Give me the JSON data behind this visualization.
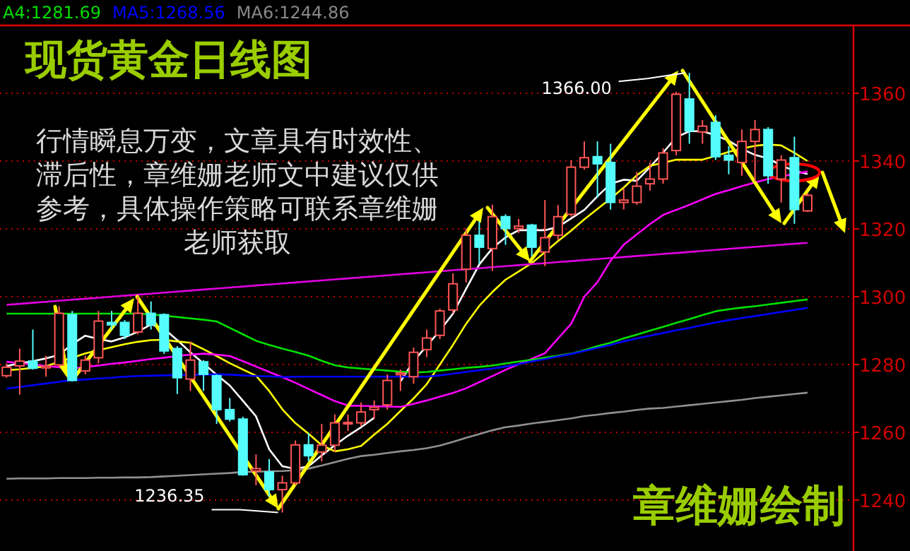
{
  "chart_data": {
    "type": "candlestick",
    "title": "现货黄金日线图",
    "categories": [
      null,
      null,
      null,
      null,
      null,
      null,
      null,
      null,
      null,
      null,
      null,
      null,
      null,
      null,
      null,
      null,
      null,
      null,
      null,
      null,
      null,
      null,
      null,
      null,
      null,
      null,
      null,
      null,
      null,
      null,
      null,
      null,
      null,
      null,
      null,
      null,
      null,
      null,
      null,
      null,
      null,
      null,
      null,
      null,
      null,
      null,
      null,
      null,
      null,
      null,
      null,
      null,
      null,
      null,
      null,
      null,
      null,
      null,
      null,
      null,
      null,
      null
    ],
    "ohlc": [
      [
        1276.7,
        1280.3,
        1276.1,
        1279.2
      ],
      [
        1279.6,
        1284.7,
        1271.1,
        1281.0
      ],
      [
        1281.0,
        1290.3,
        1278.5,
        1278.9
      ],
      [
        1279.0,
        1282.6,
        1276.4,
        1279.5
      ],
      [
        1279.9,
        1297.2,
        1279.2,
        1295.1
      ],
      [
        1294.7,
        1295.8,
        1275.0,
        1275.3
      ],
      [
        1278.1,
        1282.6,
        1277.1,
        1281.3
      ],
      [
        1282.0,
        1295.8,
        1280.3,
        1292.8
      ],
      [
        1292.4,
        1295.8,
        1290.3,
        1291.7
      ],
      [
        1292.4,
        1293.1,
        1287.5,
        1288.6
      ],
      [
        1289.6,
        1300.0,
        1288.9,
        1295.1
      ],
      [
        1295.1,
        1298.6,
        1290.3,
        1291.7
      ],
      [
        1294.7,
        1295.1,
        1283.1,
        1284.0
      ],
      [
        1284.7,
        1285.4,
        1271.3,
        1276.1
      ],
      [
        1275.7,
        1286.8,
        1272.2,
        1281.3
      ],
      [
        1280.8,
        1281.3,
        1272.2,
        1277.1
      ],
      [
        1276.7,
        1277.1,
        1262.5,
        1266.7
      ],
      [
        1266.7,
        1270.1,
        1263.2,
        1263.9
      ],
      [
        1263.9,
        1264.6,
        1247.2,
        1247.5
      ],
      [
        1248.6,
        1253.5,
        1244.4,
        1249.3
      ],
      [
        1248.3,
        1252.1,
        1241.0,
        1243.1
      ],
      [
        1243.1,
        1247.2,
        1236.35,
        1245.1
      ],
      [
        1245.1,
        1257.6,
        1244.4,
        1256.3
      ],
      [
        1256.3,
        1259.7,
        1251.4,
        1253.1
      ],
      [
        1254.2,
        1262.5,
        1251.4,
        1256.2
      ],
      [
        1256.2,
        1265.3,
        1254.2,
        1262.8
      ],
      [
        1262.5,
        1265.3,
        1260.4,
        1262.9
      ],
      [
        1262.8,
        1268.8,
        1261.8,
        1266.0
      ],
      [
        1266.7,
        1269.4,
        1263.9,
        1267.4
      ],
      [
        1268.1,
        1277.1,
        1266.7,
        1275.3
      ],
      [
        1277.0,
        1278.5,
        1272.2,
        1277.5
      ],
      [
        1276.4,
        1285.0,
        1274.3,
        1283.6
      ],
      [
        1284.4,
        1290.3,
        1282.2,
        1287.8
      ],
      [
        1288.6,
        1296.5,
        1287.5,
        1295.8
      ],
      [
        1296.1,
        1306.9,
        1295.1,
        1303.8
      ],
      [
        1308.1,
        1320.1,
        1304.2,
        1318.1
      ],
      [
        1318.1,
        1322.2,
        1309.7,
        1314.6
      ],
      [
        1314.2,
        1327.1,
        1307.6,
        1323.6
      ],
      [
        1323.6,
        1324.3,
        1315.3,
        1320.1
      ],
      [
        1320.1,
        1322.9,
        1318.8,
        1320.8
      ],
      [
        1321.1,
        1321.5,
        1311.8,
        1314.6
      ],
      [
        1313.2,
        1328.5,
        1309.0,
        1317.4
      ],
      [
        1318.1,
        1327.0,
        1316.7,
        1323.6
      ],
      [
        1324.3,
        1340.3,
        1323.6,
        1338.2
      ],
      [
        1338.2,
        1345.8,
        1337.5,
        1341.0
      ],
      [
        1341.3,
        1345.8,
        1329.2,
        1339.2
      ],
      [
        1339.6,
        1345.1,
        1325.7,
        1327.8
      ],
      [
        1327.8,
        1331.9,
        1325.7,
        1328.5
      ],
      [
        1327.8,
        1336.8,
        1327.1,
        1332.6
      ],
      [
        1333.3,
        1339.6,
        1331.3,
        1334.7
      ],
      [
        1334.7,
        1343.8,
        1333.3,
        1342.4
      ],
      [
        1343.1,
        1360.4,
        1341.7,
        1359.7
      ],
      [
        1358.3,
        1366.0,
        1345.1,
        1348.9
      ],
      [
        1348.6,
        1352.1,
        1345.1,
        1350.3
      ],
      [
        1351.4,
        1353.5,
        1340.3,
        1341.3
      ],
      [
        1341.7,
        1344.4,
        1336.1,
        1340.3
      ],
      [
        1339.6,
        1349.3,
        1335.7,
        1345.8
      ],
      [
        1345.8,
        1352.1,
        1334.0,
        1349.3
      ],
      [
        1349.3,
        1350.0,
        1333.3,
        1335.7
      ],
      [
        1334.7,
        1341.7,
        1327.8,
        1340.3
      ],
      [
        1341.0,
        1347.2,
        1321.5,
        1325.7
      ],
      [
        1325.3,
        1330.6,
        1325.0,
        1329.9
      ]
    ],
    "series": [
      {
        "type": "line",
        "color": "#ffffff",
        "values": [
          1279.6,
          1280.3,
          1281,
          1281.8,
          1282.8,
          1286,
          1288.5,
          1287.5,
          1286.8,
          1288,
          1289.7,
          1291.8,
          1290.5,
          1287.2,
          1283.6,
          1280.3,
          1277,
          1273.8,
          1269.3,
          1264.7,
          1255,
          1250,
          1249.2,
          1250,
          1253.2,
          1256.2,
          1259,
          1261.5,
          1264.3,
          null,
          1275,
          1281,
          1285.5,
          1290,
          1295,
          1302.3,
          1309.5,
          1314.3,
          1317.5,
          1319.6,
          1319.6,
          1319.6,
          1320.6,
          1323.1,
          1325.6,
          1329.6,
          1333.3,
          1334.5,
          1334.2,
          1338.2,
          1342.5,
          1347,
          1348.8,
          1348.8,
          1347.6,
          1346,
          1343.6,
          1341.8,
          1340.8,
          1338.7,
          1337.1,
          1336.2
        ]
      },
      {
        "type": "line",
        "color": "#ffff00",
        "values": [
          1278.3,
          1278.6,
          1279,
          1279.5,
          1280.8,
          1282,
          1283.3,
          1284.2,
          1285.1,
          1286,
          1286.7,
          1287.2,
          1287.3,
          1286.8,
          1286.4,
          1284.5,
          1282.5,
          1280.4,
          1278.5,
          1276.7,
          1272.2,
          1266.8,
          1262.7,
          1259.6,
          1256.2,
          1254.4,
          1255,
          1256,
          1259.3,
          1262.5,
          1266.3,
          1270,
          1274.2,
          1280,
          1285.8,
          1292,
          1297.3,
          1301.4,
          1305,
          1307.4,
          1309.9,
          1313.1,
          1316.4,
          1319.5,
          1322.8,
          1325.9,
          1328.9,
          1332.2,
          1335.8,
          1338.6,
          1339.5,
          1340.4,
          1340.4,
          1340.4,
          1341.5,
          1342.7,
          1343.7,
          1344.5,
          1344.9,
          1344.6,
          1342.4,
          1340
        ]
      },
      {
        "type": "line",
        "color": "#ff00ff",
        "values": [
          1280.8,
          1280.4,
          1280,
          1279.6,
          1279.2,
          1278.8,
          1279.3,
          1279.7,
          1280.2,
          1280.6,
          1281.1,
          1281.6,
          1282,
          1282.5,
          1282.9,
          1283.2,
          1282.9,
          1282.5,
          1281,
          1279.4,
          1277.8,
          1276.3,
          1274.6,
          1272.8,
          1271,
          1269.2,
          1267.9,
          1267.8,
          1267.7,
          1267.6,
          1267.5,
          1268.4,
          1269.4,
          1270.5,
          1271.6,
          1273,
          1274.8,
          1276.6,
          1278.4,
          1280.1,
          1281.7,
          1283.3,
          1287.7,
          1292,
          1300,
          1304.3,
          1310.6,
          1315.3,
          1318.4,
          1321.4,
          1324.1,
          1325.6,
          1327.1,
          1328.7,
          1330.3,
          1331.4,
          1332.6,
          1333.7,
          1334.7,
          1335.5,
          1336.2,
          1336.9
        ]
      },
      {
        "type": "line",
        "color": "#00e000",
        "values": [
          1295,
          1295,
          1295,
          1295,
          1295,
          1295,
          1295,
          1295,
          1295,
          1295,
          1295,
          1294.8,
          1294.4,
          1294,
          1293.6,
          1293.2,
          1292.7,
          1290.8,
          1288.9,
          1287,
          1285.8,
          1284.7,
          1283.7,
          1282.6,
          1281.1,
          1279.8,
          1279.1,
          1278.8,
          1278.5,
          1278.2,
          1277.9,
          1277.6,
          1277.8,
          1278.2,
          1278.6,
          1279,
          1279.3,
          1279.7,
          1280.3,
          1280.9,
          1281.4,
          1282,
          1282.6,
          1283.2,
          1284.2,
          1285.4,
          1286.4,
          1287.7,
          1288.8,
          1290,
          1291.1,
          1292.3,
          1293.4,
          1294.6,
          1295.7,
          1296.3,
          1296.8,
          1297.2,
          1297.7,
          1298.2,
          1298.7,
          1299.2
        ]
      },
      {
        "type": "line",
        "color": "#0000ff",
        "values": [
          1272.9,
          1273.4,
          1273.9,
          1274.4,
          1274.9,
          1275.4,
          1275.6,
          1275.9,
          1276.1,
          1276.4,
          1276.6,
          1276.7,
          1276.8,
          1276.9,
          1277,
          1277,
          1277.1,
          1277,
          1276.8,
          1276.6,
          1276.5,
          1276.3,
          1276.4,
          1276.4,
          1276.4,
          1276.4,
          1276.4,
          1276.4,
          1276.4,
          1276.4,
          1276.4,
          1276.4,
          1276.4,
          1276.8,
          1277.3,
          1277.8,
          1278.3,
          1278.8,
          1279.4,
          1280.1,
          1280.9,
          1281.6,
          1282.4,
          1283.1,
          1284,
          1284.9,
          1285.8,
          1286.8,
          1287.7,
          1288.5,
          1289.3,
          1290.1,
          1290.8,
          1291.6,
          1292.4,
          1293.1,
          1293.7,
          1294.3,
          1294.9,
          1295.5,
          1296.1,
          1296.7
        ]
      },
      {
        "type": "line",
        "color": "#909090",
        "values": [
          1246.3,
          1246.4,
          1246.4,
          1246.4,
          1246.5,
          1246.5,
          1246.5,
          1246.6,
          1246.6,
          1246.7,
          1246.7,
          1246.8,
          1247,
          1247.2,
          1247.4,
          1247.6,
          1247.8,
          1248,
          1248.3,
          1248.4,
          1248.5,
          1248.6,
          1248.8,
          1249.3,
          1250.2,
          1251.2,
          1252.2,
          1253,
          1253.4,
          1253.9,
          1254.4,
          1254.8,
          1255.3,
          1256.1,
          1257.2,
          1258.4,
          1259.5,
          1260.6,
          1261.5,
          1262,
          1262.6,
          1263.1,
          1263.6,
          1264.1,
          1264.8,
          1265.2,
          1265.7,
          1266.1,
          1266.6,
          1267,
          1267.2,
          1267.6,
          1268,
          1268.4,
          1268.8,
          1269.2,
          1269.6,
          1270.1,
          1270.5,
          1270.9,
          1271.3,
          1271.7
        ]
      },
      {
        "type": "line",
        "color": "#e000e0",
        "values": [
          1297.6,
          1297.9,
          1298.2,
          1298.5,
          1298.8,
          1299.1,
          1299.4,
          1299.7,
          1300.0,
          1300.3,
          1300.6,
          1300.9,
          1301.2,
          1301.5,
          1301.8,
          1302.1,
          1302.4,
          1302.7,
          1303.0,
          1303.3,
          1303.6,
          1303.9,
          1304.2,
          1304.5,
          1304.8,
          1305.1,
          1305.4,
          1305.7,
          1306.0,
          1306.3,
          1306.6,
          1306.9,
          1307.2,
          1307.5,
          1307.8,
          1308.1,
          1308.4,
          1308.7,
          1309.0,
          1309.3,
          1309.6,
          1309.9,
          1310.2,
          1310.5,
          1310.8,
          1311.1,
          1311.4,
          1311.7,
          1312.0,
          1312.3,
          1312.6,
          1312.9,
          1313.2,
          1313.5,
          1313.8,
          1314.1,
          1314.4,
          1314.7,
          1315.0,
          1315.3,
          1315.6,
          1315.9
        ]
      }
    ],
    "ylim": [
      1225,
      1380
    ],
    "yticks": [
      1240,
      1260,
      1280,
      1300,
      1320,
      1340,
      1360
    ],
    "grid": "y",
    "tick_labels": "y",
    "annotations": [
      "A4:1281.69",
      "MA5:1268.56",
      "MA6:1244.86",
      "行情瞬息万变，文章具有时效性、滞后性，章维姗老师文中建议仅供参考，具体操作策略可联系章维姗老师获取",
      "章维姗绘制",
      "1366.00",
      "1236.35"
    ]
  }
}
